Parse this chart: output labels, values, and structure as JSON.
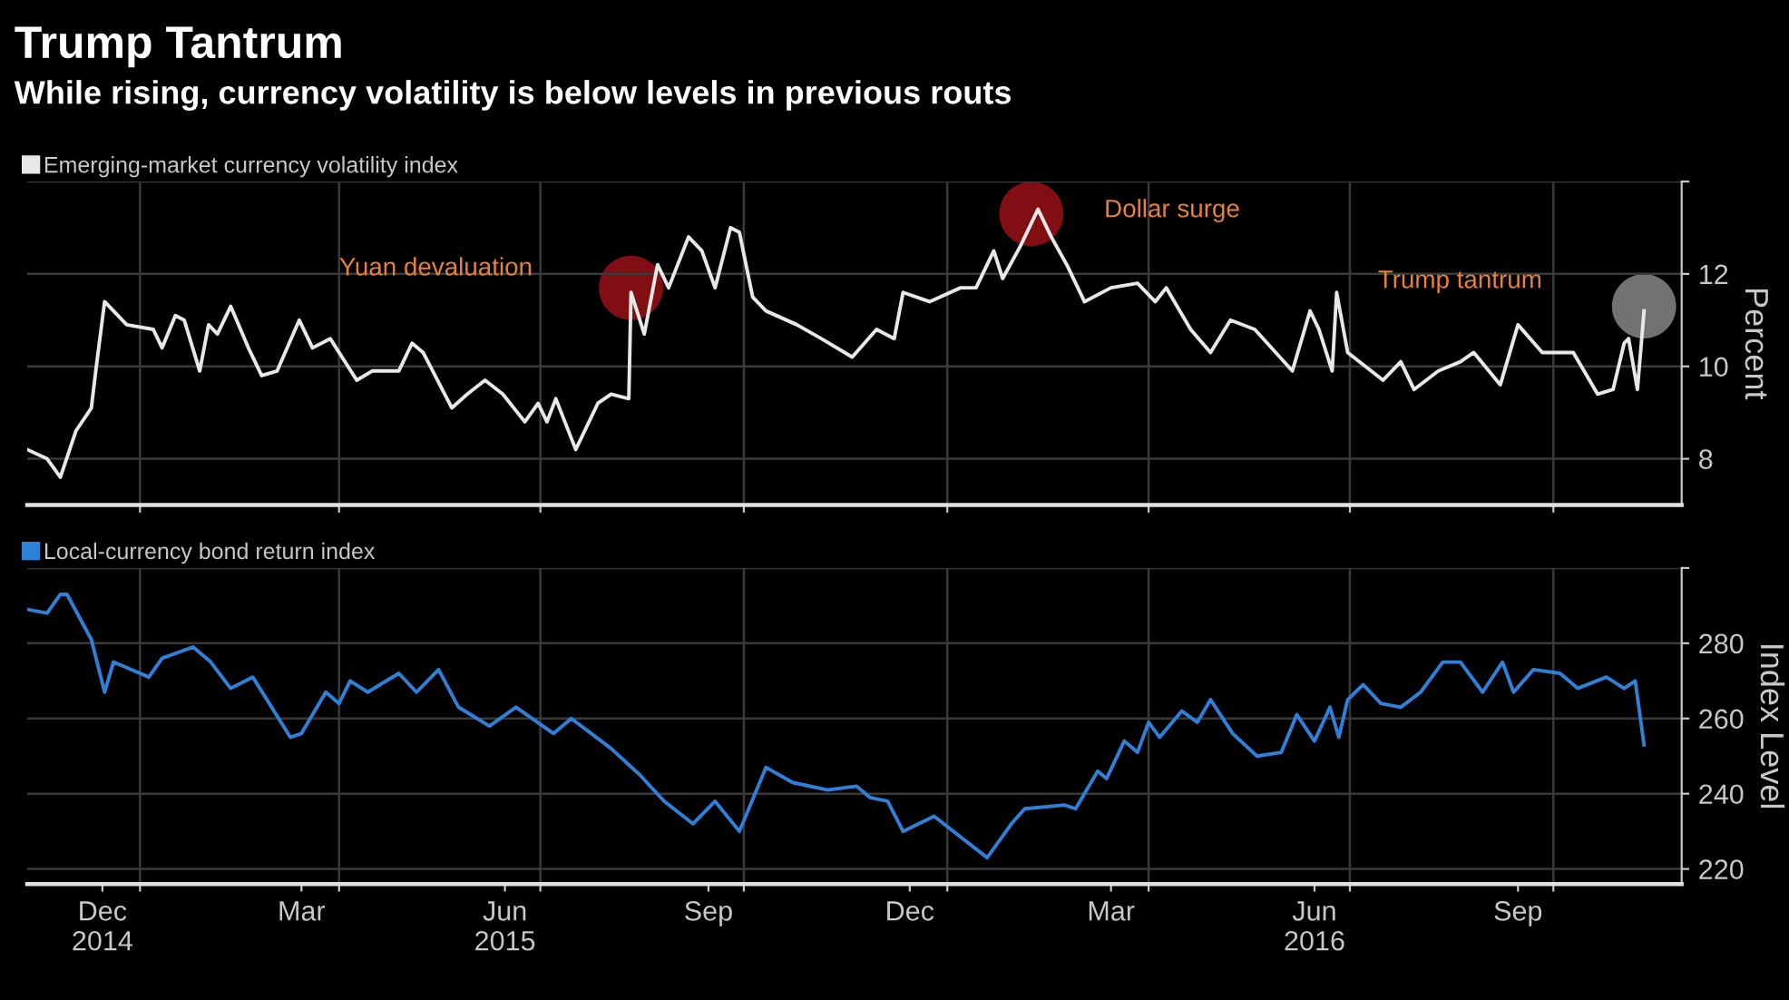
{
  "chart_data": [
    {
      "type": "line",
      "title": "Trump Tantrum",
      "subtitle": "While rising, currency volatility is below levels in previous routs",
      "ylabel": "Percent",
      "legend": "top left",
      "grid": true,
      "tick_labels": "y",
      "xlim": [
        "2014-11-11",
        "2016-11-28"
      ],
      "ylim": [
        7,
        14
      ],
      "xticks": [
        {
          "value": "2015-01-01",
          "label": null
        },
        {
          "value": "2015-04-01",
          "label": null
        },
        {
          "value": "2015-07-01",
          "label": null
        },
        {
          "value": "2015-10-01",
          "label": null
        },
        {
          "value": "2016-01-01",
          "label": null
        },
        {
          "value": "2016-04-01",
          "label": null
        },
        {
          "value": "2016-07-01",
          "label": null
        },
        {
          "value": "2016-10-01",
          "label": null
        }
      ],
      "yticks": [
        8,
        10,
        12,
        {
          "value": 14,
          "label": null
        }
      ],
      "annotations": [
        "Yuan devaluation",
        "Dollar surge",
        "Trump tantrum"
      ],
      "series": [
        {
          "name": "Emerging-market currency volatility index",
          "color": "#e8e8e8",
          "x": [
            "2014-11-11",
            "2014-11-20",
            "2014-11-26",
            "2014-12-03",
            "2014-12-10",
            "2014-12-12",
            "2014-12-16",
            "2014-12-26",
            "2015-01-07",
            "2015-01-11",
            "2015-01-17",
            "2015-01-21",
            "2015-01-28",
            "2015-02-01",
            "2015-02-05",
            "2015-02-11",
            "2015-02-19",
            "2015-02-25",
            "2015-03-04",
            "2015-03-14",
            "2015-03-20",
            "2015-03-28",
            "2015-04-09",
            "2015-04-16",
            "2015-04-28",
            "2015-05-04",
            "2015-05-09",
            "2015-05-22",
            "2015-05-29",
            "2015-06-06",
            "2015-06-14",
            "2015-06-24",
            "2015-06-30",
            "2015-07-04",
            "2015-07-08",
            "2015-07-17",
            "2015-07-27",
            "2015-08-02",
            "2015-08-10",
            "2015-08-11",
            "2015-08-17",
            "2015-08-23",
            "2015-08-28",
            "2015-09-06",
            "2015-09-12",
            "2015-09-18",
            "2015-09-25",
            "2015-09-29",
            "2015-10-05",
            "2015-10-11",
            "2015-10-25",
            "2015-11-05",
            "2015-11-19",
            "2015-11-30",
            "2015-12-08",
            "2015-12-12",
            "2015-12-24",
            "2016-01-07",
            "2016-01-14",
            "2016-01-22",
            "2016-01-26",
            "2016-02-03",
            "2016-02-11",
            "2016-02-17",
            "2016-02-24",
            "2016-03-03",
            "2016-03-15",
            "2016-03-27",
            "2016-04-04",
            "2016-04-09",
            "2016-04-20",
            "2016-04-29",
            "2016-05-08",
            "2016-05-19",
            "2016-06-05",
            "2016-06-13",
            "2016-06-17",
            "2016-06-23",
            "2016-06-25",
            "2016-06-30",
            "2016-07-16",
            "2016-07-24",
            "2016-07-30",
            "2016-08-10",
            "2016-08-20",
            "2016-08-26",
            "2016-09-07",
            "2016-09-15",
            "2016-09-26",
            "2016-10-10",
            "2016-10-21",
            "2016-10-28",
            "2016-11-02",
            "2016-11-04",
            "2016-11-08",
            "2016-11-11"
          ],
          "values": [
            8.2,
            8.0,
            7.6,
            8.6,
            9.1,
            9.9,
            11.4,
            10.9,
            10.8,
            10.4,
            11.1,
            11.0,
            9.9,
            10.9,
            10.7,
            11.3,
            10.4,
            9.8,
            9.9,
            11.0,
            10.4,
            10.6,
            9.7,
            9.9,
            9.9,
            10.5,
            10.3,
            9.1,
            9.4,
            9.7,
            9.4,
            8.8,
            9.2,
            8.8,
            9.3,
            8.2,
            9.2,
            9.4,
            9.3,
            11.6,
            10.7,
            12.2,
            11.7,
            12.8,
            12.5,
            11.7,
            13.0,
            12.9,
            11.5,
            11.2,
            10.9,
            10.6,
            10.2,
            10.8,
            10.6,
            11.6,
            11.4,
            11.7,
            11.7,
            12.5,
            11.9,
            12.6,
            13.4,
            12.8,
            12.2,
            11.4,
            11.7,
            11.8,
            11.4,
            11.7,
            10.8,
            10.3,
            11.0,
            10.8,
            9.9,
            11.2,
            10.8,
            9.9,
            11.6,
            10.3,
            9.7,
            10.1,
            9.5,
            9.9,
            10.1,
            10.3,
            9.6,
            10.9,
            10.3,
            10.3,
            9.4,
            9.5,
            10.5,
            10.6,
            9.5,
            11.2
          ]
        },
        {
          "type": "scatter",
          "colors": [
            "#b3141b",
            "#b3141b",
            "#9e9e9e"
          ],
          "x": [
            "2015-08-11",
            "2016-02-08",
            "2016-11-11"
          ],
          "values": [
            11.7,
            13.3,
            11.3
          ]
        }
      ]
    },
    {
      "type": "line",
      "ylabel": "Index Level",
      "legend": "top left",
      "grid": true,
      "xlim": [
        "2014-11-11",
        "2016-11-28"
      ],
      "ylim": [
        216,
        300
      ],
      "xticks": [
        {
          "value": "2014-12-15",
          "label": "Dec\n2014"
        },
        {
          "value": "2015-01-01",
          "label": null
        },
        {
          "value": "2015-03-15",
          "label": "Mar"
        },
        {
          "value": "2015-04-01",
          "label": null
        },
        {
          "value": "2015-06-15",
          "label": "Jun\n2015"
        },
        {
          "value": "2015-07-01",
          "label": null
        },
        {
          "value": "2015-09-15",
          "label": "Sep"
        },
        {
          "value": "2015-10-01",
          "label": null
        },
        {
          "value": "2015-12-15",
          "label": "Dec"
        },
        {
          "value": "2016-01-01",
          "label": null
        },
        {
          "value": "2016-03-15",
          "label": "Mar"
        },
        {
          "value": "2016-04-01",
          "label": null
        },
        {
          "value": "2016-06-15",
          "label": "Jun\n2016"
        },
        {
          "value": "2016-07-01",
          "label": null
        },
        {
          "value": "2016-09-15",
          "label": "Sep"
        },
        {
          "value": "2016-10-01",
          "label": null
        }
      ],
      "yticks": [
        220,
        240,
        260,
        280,
        {
          "value": 300,
          "label": null
        }
      ],
      "series": [
        {
          "name": "Local-currency bond return index",
          "color": "#2f80d8",
          "x": [
            "2014-11-11",
            "2014-11-20",
            "2014-11-26",
            "2014-11-29",
            "2014-12-10",
            "2014-12-16",
            "2014-12-20",
            "2015-01-05",
            "2015-01-11",
            "2015-01-25",
            "2015-02-02",
            "2015-02-11",
            "2015-02-21",
            "2015-03-10",
            "2015-03-15",
            "2015-03-26",
            "2015-04-01",
            "2015-04-06",
            "2015-04-14",
            "2015-04-28",
            "2015-05-06",
            "2015-05-16",
            "2015-05-25",
            "2015-06-08",
            "2015-06-20",
            "2015-07-07",
            "2015-07-15",
            "2015-08-02",
            "2015-08-15",
            "2015-08-26",
            "2015-09-08",
            "2015-09-18",
            "2015-09-29",
            "2015-10-11",
            "2015-10-23",
            "2015-11-08",
            "2015-11-21",
            "2015-11-27",
            "2015-12-05",
            "2015-12-12",
            "2015-12-26",
            "2016-01-19",
            "2016-01-30",
            "2016-02-05",
            "2016-02-23",
            "2016-02-28",
            "2016-03-09",
            "2016-03-13",
            "2016-03-21",
            "2016-03-27",
            "2016-04-01",
            "2016-04-06",
            "2016-04-16",
            "2016-04-23",
            "2016-04-29",
            "2016-05-09",
            "2016-05-20",
            "2016-05-31",
            "2016-06-07",
            "2016-06-15",
            "2016-06-22",
            "2016-06-26",
            "2016-06-30",
            "2016-07-07",
            "2016-07-15",
            "2016-07-24",
            "2016-08-02",
            "2016-08-12",
            "2016-08-20",
            "2016-08-30",
            "2016-09-08",
            "2016-09-13",
            "2016-09-22",
            "2016-10-04",
            "2016-10-12",
            "2016-10-25",
            "2016-11-02",
            "2016-11-07",
            "2016-11-11"
          ],
          "values": [
            289,
            288,
            293,
            293,
            281,
            267,
            275,
            271,
            276,
            279,
            275,
            268,
            271,
            255,
            256,
            267,
            264,
            270,
            267,
            272,
            267,
            273,
            263,
            258,
            263,
            256,
            260,
            252,
            245,
            238,
            232,
            238,
            230,
            247,
            243,
            241,
            242,
            239,
            238,
            230,
            234,
            223,
            232,
            236,
            237,
            236,
            246,
            244,
            254,
            251,
            259,
            255,
            262,
            259,
            265,
            256,
            250,
            251,
            261,
            254,
            263,
            255,
            265,
            269,
            264,
            263,
            267,
            275,
            275,
            267,
            275,
            267,
            273,
            272,
            268,
            271,
            268,
            270,
            253
          ]
        }
      ]
    }
  ]
}
